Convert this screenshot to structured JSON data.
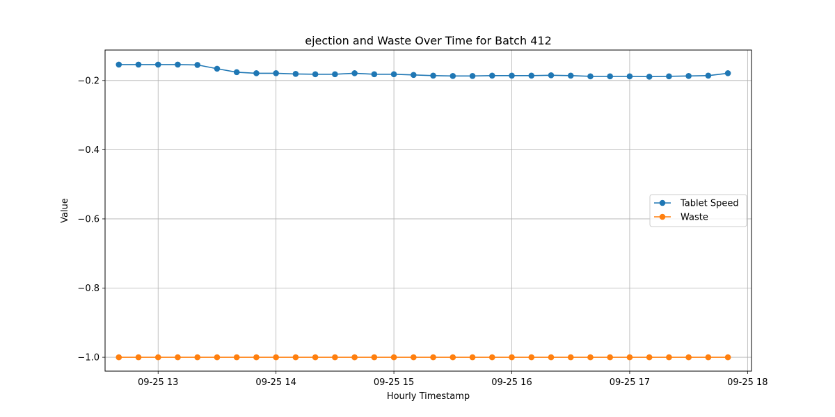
{
  "chart_data": {
    "type": "line",
    "title": "ejection and Waste Over Time for Batch 412",
    "xlabel": "Hourly Timestamp",
    "ylabel": "Value",
    "x": [
      "12:40",
      "12:50",
      "13:00",
      "13:10",
      "13:20",
      "13:30",
      "13:40",
      "13:50",
      "14:00",
      "14:10",
      "14:20",
      "14:30",
      "14:40",
      "14:50",
      "15:00",
      "15:10",
      "15:20",
      "15:30",
      "15:40",
      "15:50",
      "16:00",
      "16:10",
      "16:20",
      "16:30",
      "16:40",
      "16:50",
      "17:00",
      "17:10",
      "17:20",
      "17:30",
      "17:40",
      "17:50"
    ],
    "x_date_prefix": "09-25",
    "xlim": [
      "12:33",
      "18:02"
    ],
    "xticks": [
      "13:00",
      "14:00",
      "15:00",
      "16:00",
      "17:00",
      "18:00"
    ],
    "xtick_labels": [
      "09-25 13",
      "09-25 14",
      "09-25 15",
      "09-25 16",
      "09-25 17",
      "09-25 18"
    ],
    "ylim": [
      -1.04,
      -0.112
    ],
    "yticks": [
      -1.0,
      -0.8,
      -0.6,
      -0.4,
      -0.2
    ],
    "ytick_labels": [
      "−1.0",
      "−0.8",
      "−0.6",
      "−0.4",
      "−0.2"
    ],
    "grid": true,
    "legend_position": "center-right",
    "series": [
      {
        "name": "Tablet Speed",
        "color": "#1f77b4",
        "values": [
          -0.154,
          -0.154,
          -0.154,
          -0.154,
          -0.155,
          -0.166,
          -0.176,
          -0.179,
          -0.179,
          -0.181,
          -0.182,
          -0.182,
          -0.179,
          -0.182,
          -0.182,
          -0.184,
          -0.186,
          -0.187,
          -0.187,
          -0.186,
          -0.186,
          -0.186,
          -0.185,
          -0.186,
          -0.188,
          -0.188,
          -0.188,
          -0.189,
          -0.188,
          -0.187,
          -0.186,
          -0.179
        ]
      },
      {
        "name": "Waste",
        "color": "#ff7f0e",
        "values": [
          -1,
          -1,
          -1,
          -1,
          -1,
          -1,
          -1,
          -1,
          -1,
          -1,
          -1,
          -1,
          -1,
          -1,
          -1,
          -1,
          -1,
          -1,
          -1,
          -1,
          -1,
          -1,
          -1,
          -1,
          -1,
          -1,
          -1,
          -1,
          -1,
          -1,
          -1,
          -1
        ]
      }
    ]
  }
}
